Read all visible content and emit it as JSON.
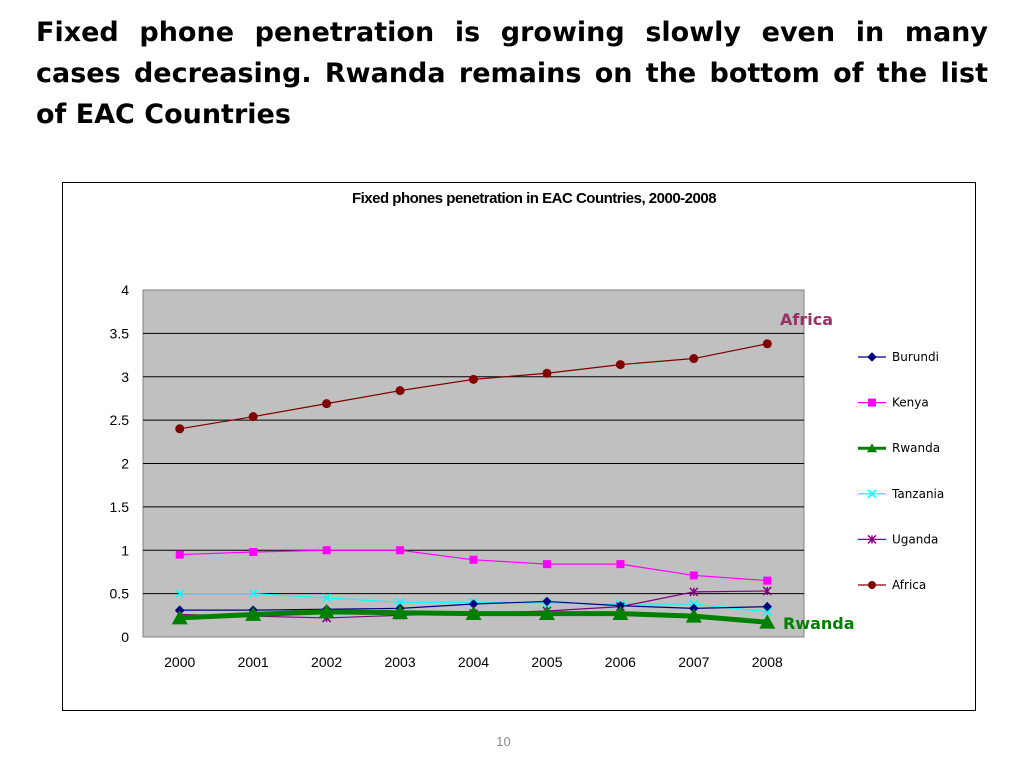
{
  "slide": {
    "title": "Fixed phone penetration is growing slowly even in many cases decreasing. Rwanda remains on the bottom of the list of EAC Countries",
    "page_number": "10"
  },
  "chart_data": {
    "type": "line",
    "title": "Fixed phones penetration in EAC Countries, 2000-2008",
    "xlabel": "",
    "ylabel": "",
    "categories": [
      "2000",
      "2001",
      "2002",
      "2003",
      "2004",
      "2005",
      "2006",
      "2007",
      "2008"
    ],
    "ylim": [
      0,
      4
    ],
    "yticks": [
      "0",
      "0.5",
      "1",
      "1.5",
      "2",
      "2.5",
      "3",
      "3.5",
      "4"
    ],
    "grid": true,
    "plot_background": "#c0c0c0",
    "legend_position": "right",
    "series": [
      {
        "name": "Burundi",
        "color": "#000080",
        "marker": "diamond",
        "values": [
          0.31,
          0.31,
          0.32,
          0.33,
          0.38,
          0.41,
          0.36,
          0.33,
          0.35
        ]
      },
      {
        "name": "Kenya",
        "color": "#ff00ff",
        "marker": "square",
        "values": [
          0.95,
          0.98,
          1.0,
          1.0,
          0.89,
          0.84,
          0.84,
          0.71,
          0.65
        ]
      },
      {
        "name": "Rwanda",
        "color": "#008000",
        "marker": "triangle",
        "values": [
          0.22,
          0.26,
          0.29,
          0.28,
          0.27,
          0.27,
          0.27,
          0.24,
          0.17
        ]
      },
      {
        "name": "Tanzania",
        "color": "#00ffff",
        "marker": "x",
        "values": [
          0.5,
          0.5,
          0.45,
          0.4,
          0.4,
          0.39,
          0.38,
          0.38,
          0.29
        ]
      },
      {
        "name": "Uganda",
        "color": "#800080",
        "marker": "star",
        "values": [
          0.26,
          0.24,
          0.22,
          0.25,
          0.27,
          0.3,
          0.35,
          0.52,
          0.53
        ]
      },
      {
        "name": "Africa",
        "color": "#800000",
        "marker": "circle",
        "values": [
          2.4,
          2.54,
          2.69,
          2.84,
          2.97,
          3.04,
          3.14,
          3.21,
          3.38
        ]
      }
    ],
    "annotations": [
      {
        "text": "Africa",
        "color": "#993366"
      },
      {
        "text": "Rwanda",
        "color": "#008000"
      }
    ]
  }
}
